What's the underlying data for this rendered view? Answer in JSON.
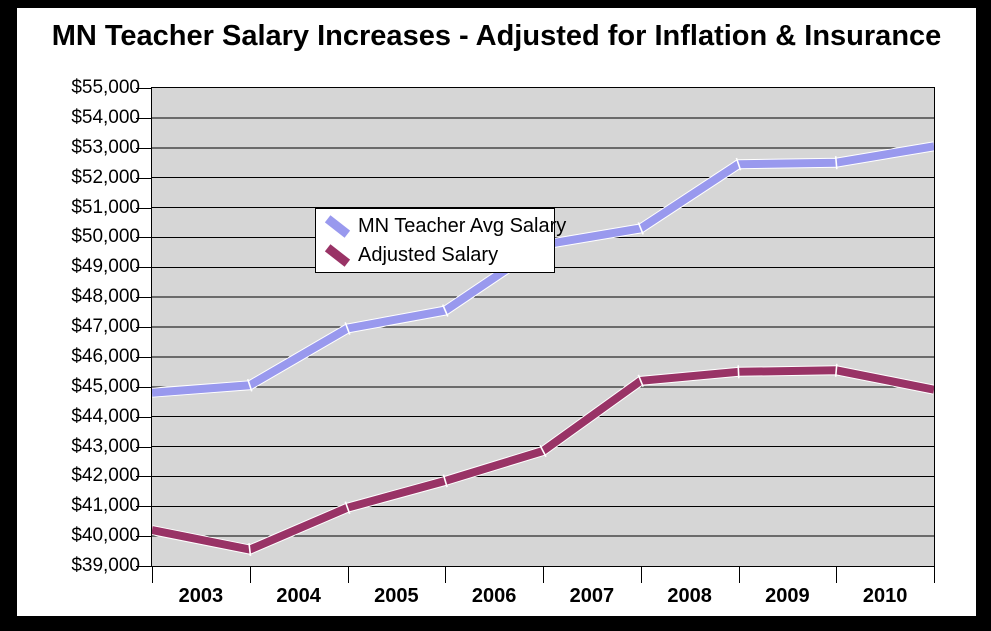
{
  "frame": {
    "outer_color": "#000000",
    "inner_background": "#FFFFFF"
  },
  "chart_data": {
    "type": "line",
    "title": "MN Teacher Salary Increases - Adjusted for Inflation & Insurance",
    "x_tick_labels": [
      "2003",
      "2004",
      "2005",
      "2006",
      "2007",
      "2008",
      "2009",
      "2010"
    ],
    "x_labels_between_ticks": true,
    "points_per_series": 9,
    "ylim": [
      39000,
      55000
    ],
    "y_tick_step": 1000,
    "y_tick_labels": [
      "$55,000",
      "$54,000",
      "$53,000",
      "$52,000",
      "$51,000",
      "$50,000",
      "$49,000",
      "$48,000",
      "$47,000",
      "$46,000",
      "$45,000",
      "$44,000",
      "$43,000",
      "$42,000",
      "$41,000",
      "$40,000",
      "$39,000"
    ],
    "grid": "horizontal",
    "gridline_color": "#000000",
    "plot_background": "#D6D6D6",
    "legend": {
      "position": "top-left-inside",
      "background": "#FFFFFF",
      "border_color": "#000000"
    },
    "series": [
      {
        "name": "MN Teacher Avg Salary",
        "color": "#9999EE",
        "values": [
          44800,
          45050,
          46950,
          47550,
          49750,
          50300,
          52450,
          52500,
          53050
        ]
      },
      {
        "name": "Adjusted Salary",
        "color": "#993366",
        "values": [
          40200,
          39550,
          40950,
          41850,
          42850,
          45200,
          45500,
          45550,
          44900
        ]
      }
    ]
  }
}
